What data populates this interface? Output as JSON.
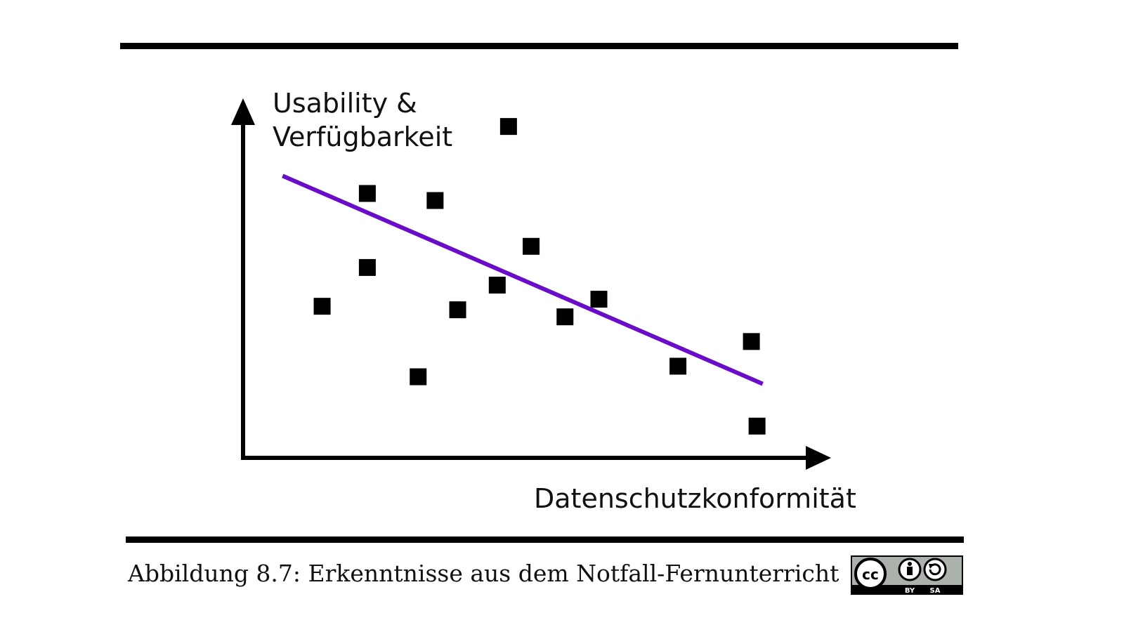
{
  "caption": "Abbildung 8.7: Erkenntnisse aus dem Notfall-Fernunterricht",
  "license": {
    "icon": "cc-by-sa-icon",
    "labels": [
      "BY",
      "SA"
    ]
  },
  "colors": {
    "trend": "#6a0dc8",
    "points": "#000000",
    "axis": "#000000"
  },
  "chart_data": {
    "type": "scatter",
    "xlabel": "Datenschutzkonformität",
    "ylabel": [
      "Usability &",
      "Verfügbarkeit"
    ],
    "xlim": [
      0,
      100
    ],
    "ylim": [
      0,
      100
    ],
    "ticks": false,
    "grid": false,
    "points": [
      {
        "x": 14,
        "y": 43
      },
      {
        "x": 22,
        "y": 54
      },
      {
        "x": 22,
        "y": 75
      },
      {
        "x": 31,
        "y": 23
      },
      {
        "x": 34,
        "y": 73
      },
      {
        "x": 38,
        "y": 42
      },
      {
        "x": 45,
        "y": 49
      },
      {
        "x": 47,
        "y": 94
      },
      {
        "x": 51,
        "y": 60
      },
      {
        "x": 57,
        "y": 40
      },
      {
        "x": 63,
        "y": 45
      },
      {
        "x": 77,
        "y": 26
      },
      {
        "x": 90,
        "y": 33
      },
      {
        "x": 91,
        "y": 9
      }
    ],
    "trendline": {
      "from": {
        "x": 7,
        "y": 80
      },
      "to": {
        "x": 92,
        "y": 21
      }
    }
  }
}
